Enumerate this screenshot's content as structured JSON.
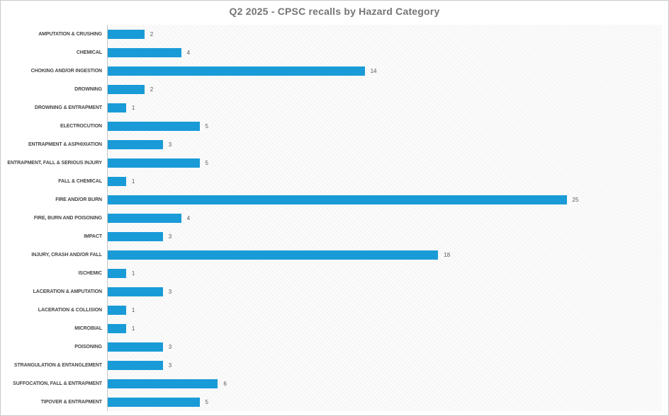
{
  "title": "Q2 2025 - CPSC recalls by Hazard Category",
  "chart_data": {
    "type": "bar",
    "orientation": "horizontal",
    "title": "Q2 2025 - CPSC recalls by Hazard Category",
    "xlabel": "",
    "ylabel": "",
    "xlim": [
      0,
      30
    ],
    "grid": "off",
    "legend_position": "none",
    "value_labels_shown": true,
    "categories": [
      "AMPUTATION & CRUSHING",
      "CHEMICAL",
      "CHOKING AND/OR INGESTION",
      "DROWNING",
      "DROWNING & ENTRAPMENT",
      "ELECTROCUTION",
      "ENTRAPMENT & ASPHIXIATION",
      "ENTRAPMENT, FALL & SERIOUS INJURY",
      "FALL & CHEMICAL",
      "FIRE AND/OR BURN",
      "FIRE, BURN AND POISONING",
      "IMPACT",
      "INJURY, CRASH AND/OR FALL",
      "ISCHEMIC",
      "LACERATION & AMPUTATION",
      "LACERATION & COLLISION",
      "MICROBIAL",
      "POISONING",
      "STRANGULATION & ENTANGLEMENT",
      "SUFFOCATION, FALL & ENTRAPMENT",
      "TIPOVER & ENTRAPMENT"
    ],
    "values": [
      2,
      4,
      14,
      2,
      1,
      5,
      3,
      5,
      1,
      25,
      4,
      3,
      18,
      1,
      3,
      1,
      1,
      3,
      3,
      6,
      5
    ]
  },
  "colors": {
    "bar": "#199bd7",
    "title_text": "#757575",
    "category_text": "#454545",
    "value_text": "#595959",
    "axis_line": "#c6c6c6",
    "frame_border": "#c9c9c9"
  }
}
